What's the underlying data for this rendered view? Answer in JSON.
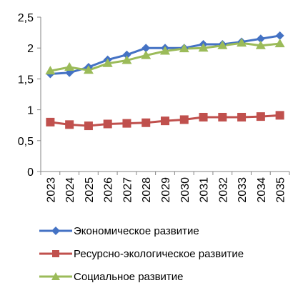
{
  "chart_data": {
    "type": "line",
    "title": "",
    "xlabel": "",
    "ylabel": "",
    "x": [
      "2023",
      "2024",
      "2025",
      "2026",
      "2027",
      "2028",
      "2029",
      "2030",
      "2031",
      "2032",
      "2033",
      "2034",
      "2035"
    ],
    "ylim": [
      0,
      2.5
    ],
    "yticks": [
      "0",
      "0,5",
      "1",
      "1,5",
      "2",
      "2,5"
    ],
    "grid": false,
    "legend_position": "bottom",
    "series": [
      {
        "name": "Экономическое развитие",
        "color": "#4472C4",
        "marker": "diamond",
        "values": [
          1.58,
          1.6,
          1.69,
          1.81,
          1.89,
          2.0,
          2.0,
          2.0,
          2.06,
          2.06,
          2.1,
          2.15,
          2.2
        ]
      },
      {
        "name": "Ресурсно-экологическое развитие",
        "color": "#C0504D",
        "marker": "square",
        "values": [
          0.8,
          0.76,
          0.74,
          0.77,
          0.78,
          0.79,
          0.82,
          0.84,
          0.88,
          0.88,
          0.88,
          0.89,
          0.91
        ]
      },
      {
        "name": "Социальное развитие",
        "color": "#9BBB59",
        "marker": "triangle",
        "values": [
          1.63,
          1.69,
          1.64,
          1.75,
          1.8,
          1.88,
          1.95,
          1.99,
          2.0,
          2.04,
          2.08,
          2.04,
          2.07
        ]
      }
    ]
  }
}
